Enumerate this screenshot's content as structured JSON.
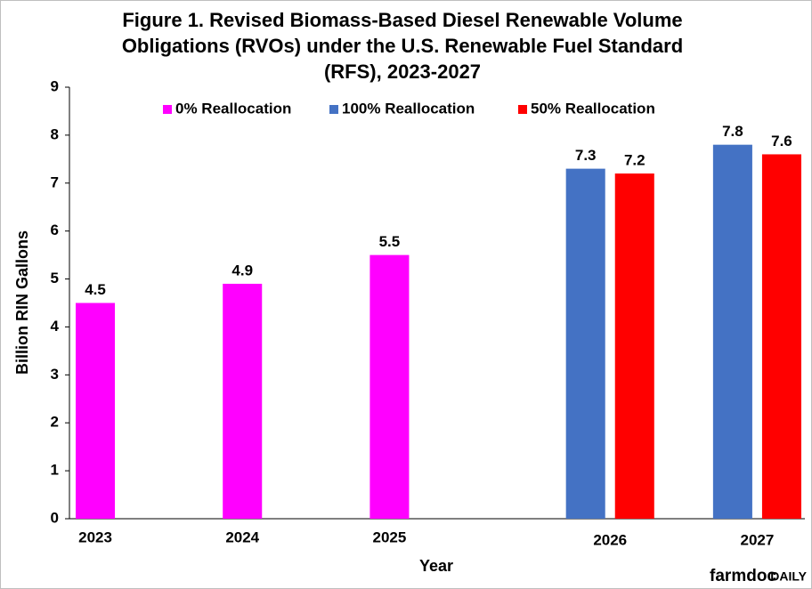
{
  "chart_data": {
    "type": "bar",
    "title": [
      "Figure 1. Revised Biomass-Based Diesel Renewable Volume",
      "Obligations (RVOs) under the U.S. Renewable Fuel Standard",
      "(RFS), 2023-2027"
    ],
    "x_label": "Year",
    "y_label": "Billion RIN Gallons",
    "categories": [
      "2023",
      "2024",
      "2025",
      "2026",
      "2027"
    ],
    "series": [
      {
        "name": "0% Reallocation",
        "color": "#ff00ff",
        "values": [
          4.5,
          4.9,
          5.5,
          null,
          null
        ]
      },
      {
        "name": "100% Reallocation",
        "color": "#4472c4",
        "values": [
          null,
          null,
          null,
          7.3,
          7.8
        ]
      },
      {
        "name": "50% Reallocation",
        "color": "#ff0000",
        "values": [
          null,
          null,
          null,
          7.2,
          7.6
        ]
      }
    ],
    "ylim": [
      0,
      9
    ],
    "yticks": [
      0,
      1,
      2,
      3,
      4,
      5,
      6,
      7,
      8,
      9
    ],
    "grid": false,
    "legend": "top",
    "logo": {
      "main": "farmdoc",
      "accent": "DAILY"
    }
  }
}
